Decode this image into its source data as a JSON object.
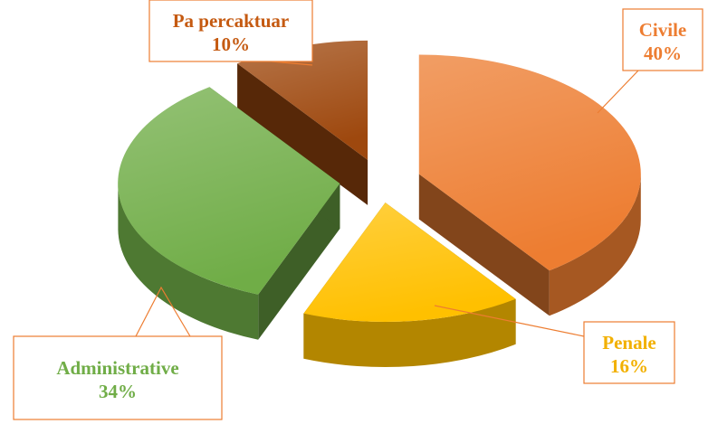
{
  "chart_data": {
    "type": "pie3d",
    "categories": [
      "Civile",
      "Penale",
      "Administrative",
      "Pa percaktuar"
    ],
    "values": [
      40,
      16,
      34,
      10
    ],
    "value_labels": [
      "40%",
      "16%",
      "34%",
      "10%"
    ],
    "colors": [
      "#ED7D31",
      "#FFC000",
      "#70AD47",
      "#9E480E"
    ]
  }
}
